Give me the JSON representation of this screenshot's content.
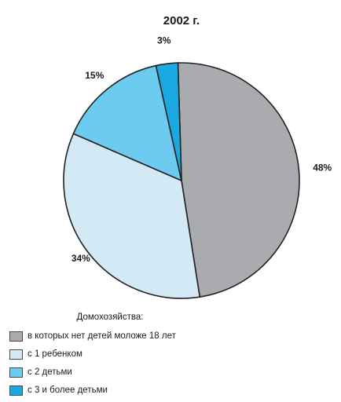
{
  "chart_data": {
    "type": "pie",
    "title": "2002 г.",
    "slices": [
      {
        "label": "в которых нет детей моложе 18 лет",
        "value": 48,
        "value_label": "48%",
        "color": "#a9abae"
      },
      {
        "label": "с 1 ребенком",
        "value": 34,
        "value_label": "34%",
        "color": "#d3e9f5"
      },
      {
        "label": "с 2 детьми",
        "value": 15,
        "value_label": "15%",
        "color": "#6dcbef"
      },
      {
        "label": "с 3 и более детьми",
        "value": 3,
        "value_label": "3%",
        "color": "#1aa9e1"
      }
    ],
    "legend": {
      "title": "Домохозяйства:",
      "placement": "bottom-left"
    }
  }
}
